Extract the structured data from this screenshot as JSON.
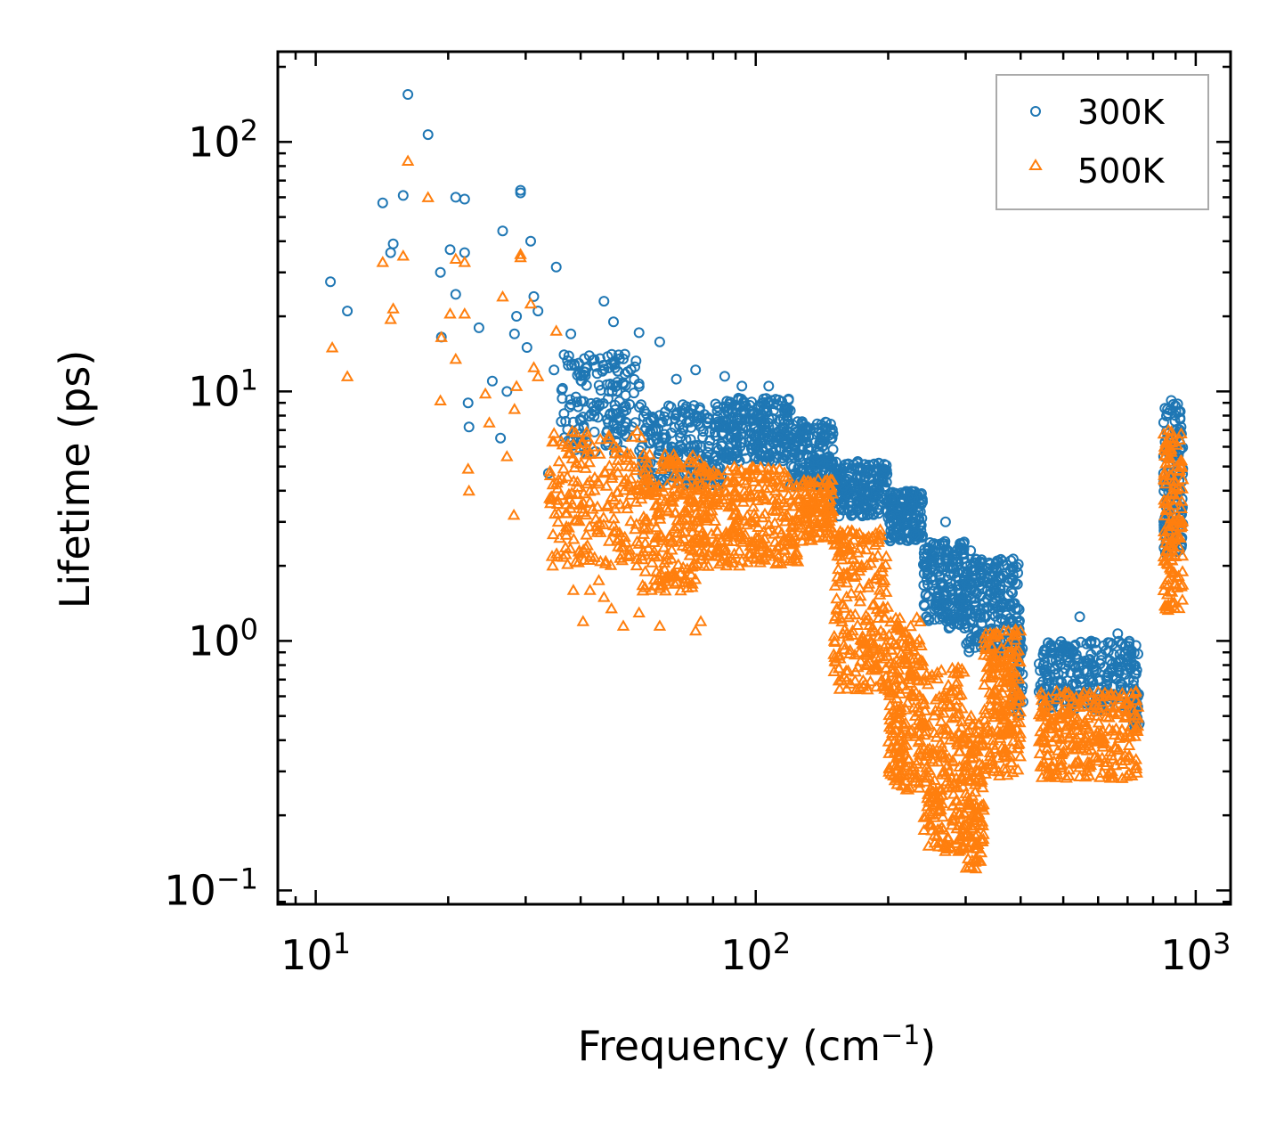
{
  "chart_data": {
    "type": "scatter",
    "title": "",
    "xlabel": "Frequency (cm",
    "xlabel_sup": "−1",
    "xlabel_close": ")",
    "ylabel": "Lifetime (ps)",
    "xscale": "log",
    "yscale": "log",
    "xlim": [
      8.2,
      1200
    ],
    "ylim": [
      0.088,
      230
    ],
    "legend_position": "top-right",
    "x_ticks": [
      {
        "value": 10,
        "base": "10",
        "exp": "1"
      },
      {
        "value": 100,
        "base": "10",
        "exp": "2"
      },
      {
        "value": 1000,
        "base": "10",
        "exp": "3"
      }
    ],
    "y_ticks": [
      {
        "value": 0.1,
        "base": "10",
        "exp": "−1"
      },
      {
        "value": 1,
        "base": "10",
        "exp": "0"
      },
      {
        "value": 10,
        "base": "10",
        "exp": "1"
      },
      {
        "value": 100,
        "base": "10",
        "exp": "2"
      }
    ],
    "series": [
      {
        "name": "300K",
        "color": "#1f77b4",
        "marker": "circle",
        "points": [
          [
            10.8,
            27.5
          ],
          [
            11.8,
            21
          ],
          [
            14.2,
            57
          ],
          [
            14.8,
            36
          ],
          [
            15,
            39
          ],
          [
            15.8,
            61
          ],
          [
            16.2,
            155
          ],
          [
            18,
            107
          ],
          [
            19.2,
            30
          ],
          [
            19.3,
            16.5
          ],
          [
            20.2,
            37
          ],
          [
            20.8,
            60
          ],
          [
            20.8,
            24.5
          ],
          [
            21.8,
            59
          ],
          [
            22.2,
            9
          ],
          [
            22.3,
            7.2
          ],
          [
            21.8,
            36
          ],
          [
            23.5,
            18
          ],
          [
            25.2,
            11
          ],
          [
            26.6,
            44
          ],
          [
            26.3,
            6.5
          ],
          [
            27.2,
            10
          ],
          [
            28.6,
            20
          ],
          [
            29.2,
            62.5
          ],
          [
            29.2,
            64
          ],
          [
            28.3,
            17
          ],
          [
            30.8,
            40
          ],
          [
            31.3,
            24
          ],
          [
            32,
            21
          ],
          [
            30.2,
            15
          ],
          [
            33.8,
            4.7
          ],
          [
            35.2,
            31.5
          ],
          [
            34.8,
            12.2
          ],
          [
            38,
            17
          ],
          [
            40.2,
            11
          ],
          [
            45.2,
            23
          ],
          [
            47.5,
            19
          ],
          [
            50,
            13.5
          ],
          [
            54.3,
            17.2
          ],
          [
            60.5,
            15.8
          ],
          [
            66,
            11.2
          ],
          [
            73,
            12.2
          ],
          [
            85,
            11.5
          ],
          [
            93,
            10.5
          ],
          [
            107,
            10.5
          ],
          [
            148,
            7.4
          ],
          [
            160,
            5.1
          ],
          [
            187,
            4
          ],
          [
            205,
            3.7
          ],
          [
            270,
            3
          ],
          [
            308,
            2.3
          ],
          [
            380,
            2.1
          ],
          [
            450,
            0.88
          ],
          [
            545,
            1.25
          ],
          [
            665,
            1.07
          ],
          [
            880,
            9.2
          ]
        ],
        "bands": [
          {
            "x": [
              36,
              55
            ],
            "ylog": [
              0.75,
              1.15
            ],
            "n": 160
          },
          {
            "x": [
              55,
              85
            ],
            "ylog": [
              0.62,
              0.95
            ],
            "n": 220
          },
          {
            "x": [
              85,
              120
            ],
            "ylog": [
              0.72,
              0.98
            ],
            "n": 240
          },
          {
            "x": [
              120,
              150
            ],
            "ylog": [
              0.62,
              0.88
            ],
            "n": 180
          },
          {
            "x": [
              150,
              200
            ],
            "ylog": [
              0.5,
              0.72
            ],
            "n": 200
          },
          {
            "x": [
              200,
              240
            ],
            "ylog": [
              0.4,
              0.6
            ],
            "n": 160
          },
          {
            "x": [
              240,
              300
            ],
            "ylog": [
              0.05,
              0.4
            ],
            "n": 200
          },
          {
            "x": [
              300,
              400
            ],
            "ylog": [
              -0.05,
              0.33
            ],
            "n": 220
          },
          {
            "x": [
              385,
              405
            ],
            "ylog": [
              -0.3,
              0.0
            ],
            "n": 50
          },
          {
            "x": [
              440,
              740
            ],
            "ylog": [
              -0.28,
              0.0
            ],
            "n": 280
          },
          {
            "x": [
              720,
              745
            ],
            "ylog": [
              -0.35,
              -0.2
            ],
            "n": 30
          },
          {
            "x": [
              845,
              935
            ],
            "ylog": [
              0.35,
              0.95
            ],
            "n": 140
          }
        ]
      },
      {
        "name": "500K",
        "color": "#ff7f0e",
        "marker": "triangle",
        "points": [
          [
            10.9,
            15
          ],
          [
            11.8,
            11.5
          ],
          [
            14.2,
            33
          ],
          [
            14.8,
            19.5
          ],
          [
            15,
            21.5
          ],
          [
            15.8,
            35
          ],
          [
            16.2,
            84
          ],
          [
            18,
            60
          ],
          [
            19.2,
            9.2
          ],
          [
            19.3,
            16.5
          ],
          [
            20.2,
            20.5
          ],
          [
            20.8,
            13.5
          ],
          [
            20.8,
            34
          ],
          [
            21.8,
            20.5
          ],
          [
            21.8,
            33
          ],
          [
            22.2,
            4.9
          ],
          [
            22.3,
            4
          ],
          [
            24.3,
            9.8
          ],
          [
            24.8,
            7.5
          ],
          [
            26.6,
            24
          ],
          [
            27.2,
            5.5
          ],
          [
            28.6,
            10.5
          ],
          [
            29.2,
            35.5
          ],
          [
            29.2,
            34.5
          ],
          [
            28.3,
            8.5
          ],
          [
            28.2,
            3.2
          ],
          [
            30.8,
            22.5
          ],
          [
            31.3,
            12.5
          ],
          [
            32,
            11.5
          ],
          [
            35.2,
            17.5
          ],
          [
            34.8,
            6.8
          ],
          [
            38.5,
            1.6
          ],
          [
            42,
            1.6
          ],
          [
            44,
            1.75
          ],
          [
            45.2,
            1.5
          ],
          [
            47,
            1.35
          ],
          [
            49.2,
            2.15
          ],
          [
            40.5,
            1.2
          ],
          [
            50,
            1.15
          ],
          [
            54.3,
            1.3
          ],
          [
            60.5,
            1.15
          ],
          [
            73,
            1.1
          ],
          [
            75,
            1.2
          ],
          [
            126,
            3.3
          ]
        ],
        "bands": [
          {
            "x": [
              34,
              55
            ],
            "ylog": [
              0.3,
              0.85
            ],
            "n": 200
          },
          {
            "x": [
              55,
              75
            ],
            "ylog": [
              0.2,
              0.75
            ],
            "n": 220
          },
          {
            "x": [
              75,
              125
            ],
            "ylog": [
              0.3,
              0.7
            ],
            "n": 300
          },
          {
            "x": [
              125,
              150
            ],
            "ylog": [
              0.4,
              0.65
            ],
            "n": 120
          },
          {
            "x": [
              150,
              200
            ],
            "ylog": [
              -0.2,
              0.45
            ],
            "n": 220
          },
          {
            "x": [
              200,
              240
            ],
            "ylog": [
              -0.6,
              0.1
            ],
            "n": 200
          },
          {
            "x": [
              240,
              300
            ],
            "ylog": [
              -0.85,
              -0.1
            ],
            "n": 220
          },
          {
            "x": [
              300,
              330
            ],
            "ylog": [
              -0.92,
              -0.3
            ],
            "n": 120
          },
          {
            "x": [
              330,
              400
            ],
            "ylog": [
              -0.55,
              0.05
            ],
            "n": 200
          },
          {
            "x": [
              440,
              740
            ],
            "ylog": [
              -0.55,
              -0.2
            ],
            "n": 280
          },
          {
            "x": [
              845,
              935
            ],
            "ylog": [
              0.12,
              0.85
            ],
            "n": 140
          }
        ]
      }
    ]
  }
}
